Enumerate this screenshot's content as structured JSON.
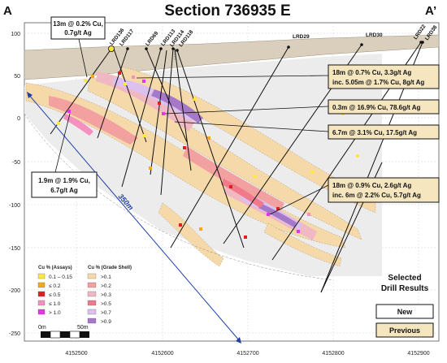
{
  "header": {
    "title": "Section 736935 E",
    "left_label": "A",
    "right_label": "A’"
  },
  "axes": {
    "y_ticks": [
      "100",
      "50",
      "0",
      "-50",
      "-100",
      "-150",
      "-200",
      "-250"
    ],
    "x_ticks": [
      "4152500",
      "4152600",
      "4152700",
      "4152800",
      "4152900"
    ]
  },
  "drill_holes": [
    "LRD136",
    "LRD117",
    "LRD69",
    "LRD113",
    "LRD114",
    "LRD118",
    "LRD29",
    "LRD30",
    "LRD22",
    "LRD38"
  ],
  "callouts": {
    "c1": {
      "line1": "13m @ 0.2% Cu,",
      "line2": "0.7g/t Ag"
    },
    "c2": {
      "line1": "1.9m @ 1.9% Cu,",
      "line2": "6.7g/t Ag"
    },
    "c3": {
      "line1": "18m @ 0.7% Cu, 3.3g/t Ag",
      "line2": "inc. 5.05m @ 1.7% Cu, 8g/t Ag"
    },
    "c4": {
      "line1": "0.3m @ 16.9% Cu, 78.6g/t Ag"
    },
    "c5": {
      "line1": "6.7m @ 3.1% Cu, 17.5g/t Ag"
    },
    "c6": {
      "line1": "18m @ 0.9% Cu, 2.6g/t Ag",
      "line2": "inc. 6m @ 2.2% Cu, 5.7g/t Ag"
    }
  },
  "distance_label": "350m",
  "legend_assays": {
    "title": "Cu % (Assays)",
    "items": [
      {
        "label": "0.1 – 0.15",
        "color": "#ffe640"
      },
      {
        "label": "≤ 0.2",
        "color": "#f5a623"
      },
      {
        "label": "≤ 0.5",
        "color": "#e01f1f"
      },
      {
        "label": "≤ 1.0",
        "color": "#f58fc0"
      },
      {
        "label": "> 1.0",
        "color": "#e733e7"
      }
    ]
  },
  "legend_shell": {
    "title": "Cu % (Grade Shell)",
    "items": [
      {
        "label": ">0.1",
        "color": "#f5d9a8"
      },
      {
        "label": ">0.2",
        "color": "#f2a0a0"
      },
      {
        "label": ">0.3",
        "color": "#f0b8c2"
      },
      {
        "label": ">0.5",
        "color": "#f07a8a"
      },
      {
        "label": ">0.7",
        "color": "#dcc0ee"
      },
      {
        "label": ">0.9",
        "color": "#a678c8"
      }
    ]
  },
  "selected": {
    "line1": "Selected",
    "line2": "Drill Results",
    "new_label": "New",
    "previous_label": "Previous",
    "previous_color": "#f5e6bf"
  },
  "scale": {
    "start": "0m",
    "end": "50m"
  }
}
